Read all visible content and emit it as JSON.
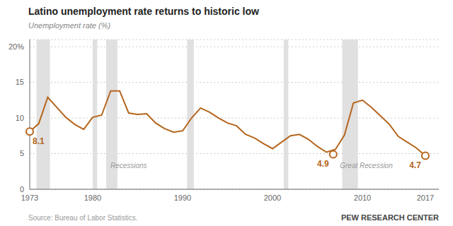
{
  "chart_data": {
    "type": "line",
    "title": "Latino unemployment rate returns to historic low",
    "ylabel": "Unemployment rate (%)",
    "source": "Source: Bureau of Labor Statistics.",
    "branding": "PEW RESEARCH CENTER",
    "color": "#b5651d",
    "x": [
      1973,
      1974,
      1975,
      1976,
      1977,
      1978,
      1979,
      1980,
      1981,
      1982,
      1983,
      1984,
      1985,
      1986,
      1987,
      1988,
      1989,
      1990,
      1991,
      1992,
      1993,
      1994,
      1995,
      1996,
      1997,
      1998,
      1999,
      2000,
      2001,
      2002,
      2003,
      2004,
      2005,
      2006,
      2007,
      2008,
      2009,
      2010,
      2011,
      2012,
      2013,
      2014,
      2015,
      2016,
      2017
    ],
    "values": [
      8.1,
      9.2,
      12.9,
      11.5,
      10.1,
      9.1,
      8.4,
      10.1,
      10.4,
      13.8,
      13.8,
      10.7,
      10.5,
      10.6,
      9.3,
      8.5,
      8.0,
      8.2,
      10.0,
      11.4,
      10.8,
      10.0,
      9.3,
      8.9,
      7.7,
      7.2,
      6.4,
      5.7,
      6.6,
      7.5,
      7.7,
      7.0,
      6.0,
      5.2,
      5.6,
      7.6,
      12.1,
      12.5,
      11.5,
      10.3,
      9.1,
      7.4,
      6.6,
      5.8,
      4.7
    ],
    "xlim": [
      1973,
      2018.5
    ],
    "xticks": [
      1973,
      1980,
      1990,
      2000,
      2010,
      2017
    ],
    "ylim": [
      0,
      21
    ],
    "yticks": [
      0,
      5,
      10,
      15,
      {
        "value": 20,
        "label": "20%"
      }
    ],
    "grid": true,
    "recessions": {
      "color": "#e0e0e0",
      "ranges": [
        [
          1973.75,
          1975.25
        ],
        [
          1980.0,
          1980.5
        ],
        [
          1981.5,
          1982.75
        ],
        [
          1990.5,
          1991.25
        ],
        [
          2001.25,
          2001.75
        ],
        [
          2007.75,
          2009.5
        ]
      ]
    },
    "annotations": [
      {
        "text": "Recessions",
        "x": 1984,
        "y": 3.0
      },
      {
        "text": "Great Recession",
        "x": 2007.5,
        "y": 3.0
      },
      {
        "text": "8.1",
        "x": 1973,
        "y": 8.1,
        "marker": "open_circle"
      },
      {
        "text": "4.9",
        "x": 2006.75,
        "y": 4.9,
        "marker": "open_circle"
      },
      {
        "text": "4.7",
        "x": 2017,
        "y": 4.7,
        "marker": "open_circle"
      }
    ]
  }
}
